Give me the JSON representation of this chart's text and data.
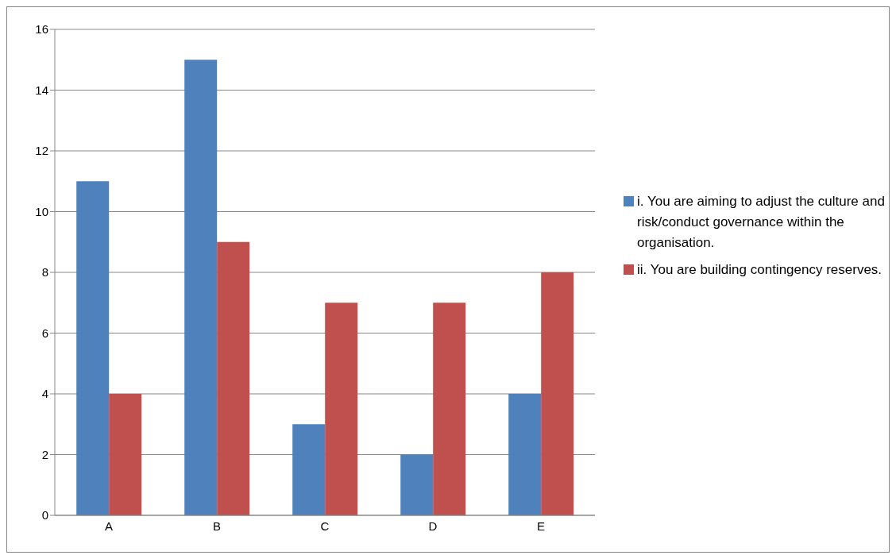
{
  "chart_data": {
    "type": "bar",
    "categories": [
      "A",
      "B",
      "C",
      "D",
      "E"
    ],
    "series": [
      {
        "name": "i. You are aiming to adjust the culture and risk/conduct governance within the organisation.",
        "color": "#4f81bd",
        "values": [
          11,
          15,
          3,
          2,
          4
        ]
      },
      {
        "name": "ii. You are building contingency reserves.",
        "color": "#c0504d",
        "values": [
          4,
          9,
          7,
          7,
          8
        ]
      }
    ],
    "ylim": [
      0,
      16
    ],
    "yticks": [
      0,
      2,
      4,
      6,
      8,
      10,
      12,
      14,
      16
    ],
    "grid": "y",
    "legend": "right"
  }
}
